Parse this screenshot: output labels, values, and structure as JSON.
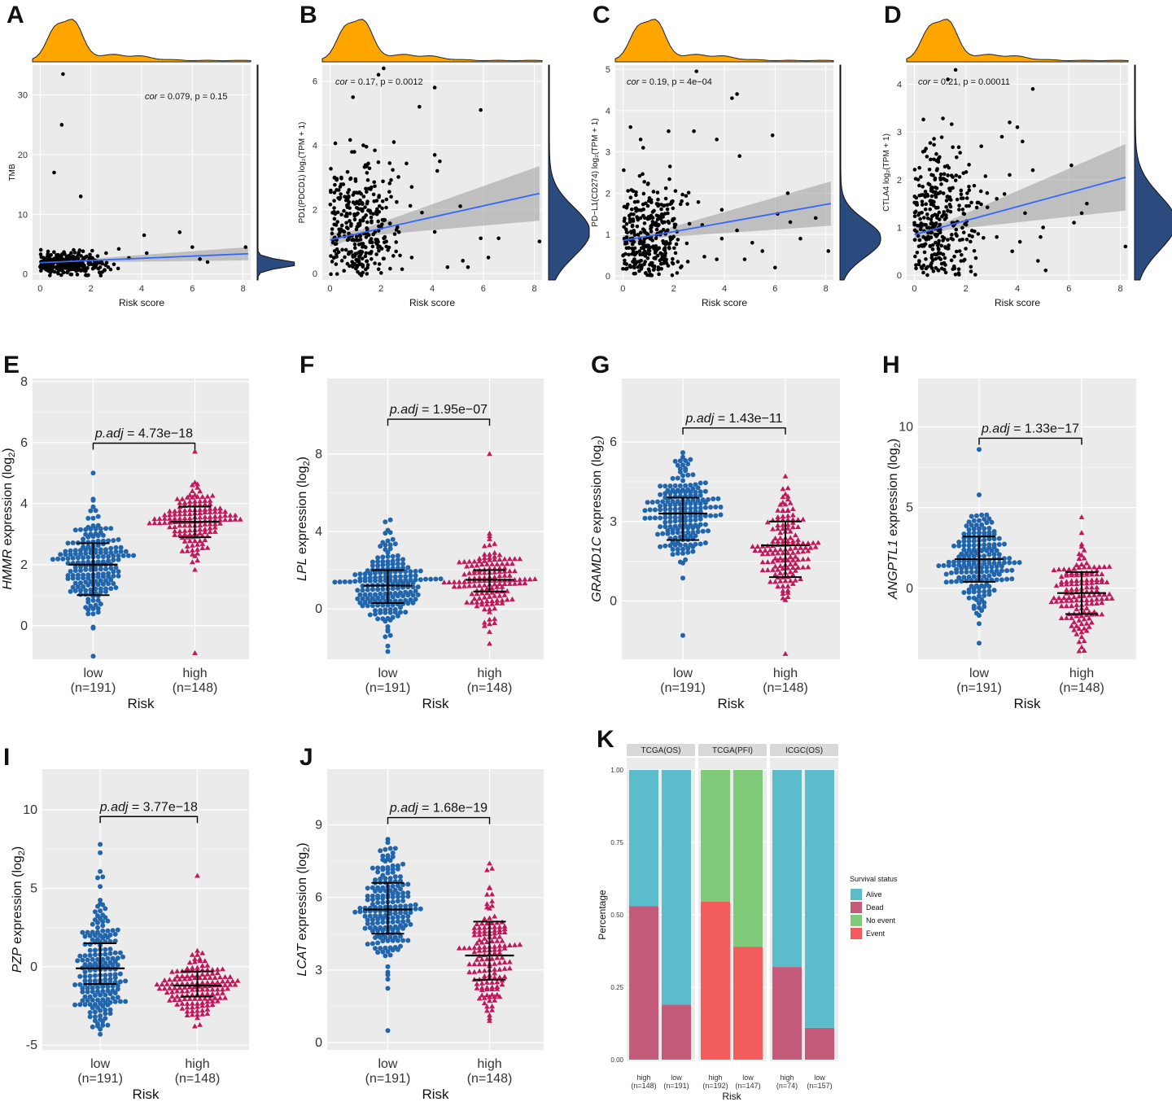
{
  "panel_labels": [
    "A",
    "B",
    "C",
    "D",
    "E",
    "F",
    "G",
    "H",
    "I",
    "J",
    "K"
  ],
  "colors": {
    "panel_bg": "#ebebeb",
    "grid": "#ffffff",
    "density_top": "#ffa500",
    "density_right": "#2b4a7e",
    "fit_line": "#3366ff",
    "ci_band": "#9a9a9a",
    "low_group": "#2166ac",
    "high_group": "#c2185b",
    "alive": "#5bbccc",
    "dead": "#c45b7a",
    "no_event": "#7fcb7a",
    "event": "#f25c5c",
    "strip_bg": "#d9d9d9"
  },
  "chart_data": [
    {
      "id": "A",
      "type": "scatter",
      "xlabel": "Risk score",
      "ylabel": "TMB",
      "annotation": {
        "cor_text": "cor",
        "rest": " = 0.079, p = 0.15"
      },
      "xlim": [
        -0.3,
        8.3
      ],
      "ylim": [
        -1,
        35
      ],
      "xticks": [
        0,
        2,
        4,
        6,
        8
      ],
      "yticks": [
        0,
        10,
        20,
        30
      ],
      "fit": {
        "y0": 1.9,
        "y1": 3.4
      },
      "outliers": [
        [
          0.9,
          33.5
        ],
        [
          0.85,
          25
        ],
        [
          0.55,
          17
        ],
        [
          1.6,
          13
        ],
        [
          4.1,
          6.5
        ],
        [
          5.5,
          7
        ],
        [
          3.1,
          4.2
        ],
        [
          4.2,
          3.5
        ],
        [
          6.0,
          4.5
        ],
        [
          6.3,
          2.5
        ],
        [
          6.6,
          2
        ],
        [
          8.1,
          4.5
        ],
        [
          2.6,
          3.5
        ],
        [
          3.5,
          2.7
        ]
      ],
      "main_cluster": {
        "n": 300,
        "x_mean": 1.1,
        "x_sd": 0.9,
        "y_mean": 1.7,
        "y_sd": 1.0
      }
    },
    {
      "id": "B",
      "type": "scatter",
      "xlabel": "Risk score",
      "ylabel": "PD1(PDCD1) log₂(TPM + 1)",
      "annotation": {
        "cor_text": "cor",
        "rest": " = 0.17, p = 0.0012"
      },
      "xlim": [
        -0.3,
        8.3
      ],
      "ylim": [
        -0.2,
        6.5
      ],
      "xticks": [
        0,
        2,
        4,
        6,
        8
      ],
      "yticks": [
        0,
        2,
        4,
        6
      ],
      "fit": {
        "y0": 1.05,
        "y1": 2.5
      },
      "outliers": [
        [
          2.1,
          6.4
        ],
        [
          1.9,
          6.2
        ],
        [
          4.1,
          5.8
        ],
        [
          0.9,
          5.5
        ],
        [
          5.9,
          5.1
        ],
        [
          3.5,
          5.2
        ],
        [
          2.5,
          4.1
        ],
        [
          4.1,
          3.7
        ],
        [
          4.3,
          3.5
        ],
        [
          4.2,
          3.2
        ],
        [
          3.2,
          2.7
        ],
        [
          5.1,
          2.1
        ],
        [
          3.6,
          1.9
        ],
        [
          4.1,
          1.3
        ],
        [
          5.9,
          1.1
        ],
        [
          8.2,
          1.0
        ],
        [
          6.6,
          1.1
        ],
        [
          6.2,
          0.5
        ],
        [
          5.2,
          0.4
        ],
        [
          5.4,
          0.2
        ],
        [
          4.6,
          0.2
        ],
        [
          3.2,
          0.5
        ]
      ],
      "main_cluster": {
        "n": 330,
        "x_mean": 1.1,
        "x_sd": 0.9,
        "y_mean": 1.3,
        "y_sd": 1.2
      }
    },
    {
      "id": "C",
      "type": "scatter",
      "xlabel": "Risk score",
      "ylabel": "PD−L1(CD274) log₂(TPM + 1)",
      "annotation": {
        "cor_text": "cor",
        "rest": " = 0.19, p = 4e−04"
      },
      "xlim": [
        -0.3,
        8.3
      ],
      "ylim": [
        -0.1,
        5.1
      ],
      "xticks": [
        0,
        2,
        4,
        6,
        8
      ],
      "yticks": [
        0,
        1,
        2,
        3,
        4,
        5
      ],
      "fit": {
        "y0": 0.85,
        "y1": 1.75
      },
      "outliers": [
        [
          2.9,
          4.95
        ],
        [
          4.5,
          4.4
        ],
        [
          4.3,
          4.3
        ],
        [
          0.3,
          3.6
        ],
        [
          1.8,
          3.5
        ],
        [
          2.8,
          3.5
        ],
        [
          0.7,
          3.3
        ],
        [
          5.9,
          3.4
        ],
        [
          3.7,
          3.3
        ],
        [
          0.8,
          3.1
        ],
        [
          4.6,
          2.9
        ],
        [
          6.5,
          2.0
        ],
        [
          3.9,
          1.6
        ],
        [
          6.1,
          1.5
        ],
        [
          7.6,
          1.4
        ],
        [
          6.6,
          1.3
        ],
        [
          4.5,
          1.1
        ],
        [
          5.1,
          0.8
        ],
        [
          7.0,
          0.9
        ],
        [
          5.5,
          0.6
        ],
        [
          4.8,
          0.4
        ],
        [
          3.7,
          0.4
        ],
        [
          6.0,
          0.2
        ],
        [
          8.1,
          0.6
        ],
        [
          3.9,
          0.9
        ]
      ],
      "main_cluster": {
        "n": 330,
        "x_mean": 1.0,
        "x_sd": 0.8,
        "y_mean": 0.9,
        "y_sd": 0.7
      }
    },
    {
      "id": "D",
      "type": "scatter",
      "xlabel": "Risk score",
      "ylabel": "CTLA4 log₂(TPM + 1)",
      "annotation": {
        "cor_text": "cor",
        "rest": " = 0.21, p = 0.00011"
      },
      "xlim": [
        -0.3,
        8.3
      ],
      "ylim": [
        -0.1,
        4.4
      ],
      "xticks": [
        0,
        2,
        4,
        6,
        8
      ],
      "yticks": [
        0,
        1,
        2,
        3,
        4
      ],
      "fit": {
        "y0": 0.85,
        "y1": 2.05
      },
      "outliers": [
        [
          1.6,
          4.3
        ],
        [
          1.3,
          4.1
        ],
        [
          4.6,
          3.9
        ],
        [
          3.7,
          3.2
        ],
        [
          4.0,
          3.1
        ],
        [
          3.4,
          2.9
        ],
        [
          4.2,
          2.8
        ],
        [
          2.6,
          2.7
        ],
        [
          6.1,
          2.3
        ],
        [
          3.7,
          2.1
        ],
        [
          4.6,
          2.2
        ],
        [
          3.2,
          1.6
        ],
        [
          3.5,
          1.7
        ],
        [
          4.3,
          1.3
        ],
        [
          5.0,
          1.0
        ],
        [
          6.7,
          1.5
        ],
        [
          6.5,
          1.3
        ],
        [
          6.2,
          1.1
        ],
        [
          4.9,
          0.8
        ],
        [
          4.1,
          0.7
        ],
        [
          3.2,
          0.8
        ],
        [
          8.2,
          0.6
        ],
        [
          5.1,
          0.1
        ],
        [
          4.8,
          0.3
        ],
        [
          3.8,
          0.5
        ]
      ],
      "main_cluster": {
        "n": 330,
        "x_mean": 1.0,
        "x_sd": 0.8,
        "y_mean": 1.1,
        "y_sd": 0.9
      }
    },
    {
      "id": "E",
      "type": "beeswarm",
      "gene": "HMMR",
      "ylabel_suffix": " expression (log",
      "ylabel_sub": "2",
      "ylabel_close": ")",
      "xlabel": "Risk",
      "groups": [
        {
          "name": "low",
          "n_label": "(n=191)",
          "n": 191,
          "mean": 2.0,
          "sd": 0.85,
          "min": -1.0,
          "max": 5.0,
          "mid": 2.0,
          "lo": 1.0,
          "hi": 2.7
        },
        {
          "name": "high",
          "n_label": "(n=148)",
          "n": 148,
          "mean": 3.4,
          "sd": 0.6,
          "min": -0.9,
          "max": 5.7,
          "mid": 3.4,
          "lo": 2.9,
          "hi": 3.9
        }
      ],
      "padj_label": "p.adj",
      "padj_value": "4.73e−18",
      "padj_y": 6.3,
      "ylim": [
        -1.1,
        8.1
      ],
      "yticks": [
        0,
        2,
        4,
        6,
        8
      ]
    },
    {
      "id": "F",
      "type": "beeswarm",
      "gene": "LPL",
      "ylabel_suffix": " expression (log",
      "ylabel_sub": "2",
      "ylabel_close": ")",
      "xlabel": "Risk",
      "groups": [
        {
          "name": "low",
          "n_label": "(n=191)",
          "n": 191,
          "mean": 1.2,
          "sd": 1.1,
          "min": -2.2,
          "max": 4.6,
          "mid": 1.2,
          "lo": 0.3,
          "hi": 2.0
        },
        {
          "name": "high",
          "n_label": "(n=148)",
          "n": 148,
          "mean": 1.5,
          "sd": 1.0,
          "min": -1.8,
          "max": 8.0,
          "mid": 1.5,
          "lo": 0.9,
          "hi": 2.0
        }
      ],
      "padj_label": "p.adj",
      "padj_value": "1.95e−07",
      "padj_y": 10.3,
      "ylim": [
        -2.6,
        11.9
      ],
      "yticks": [
        0,
        4,
        8
      ]
    },
    {
      "id": "G",
      "type": "beeswarm",
      "gene": "GRAMD1C",
      "ylabel_suffix": " expression (log",
      "ylabel_sub": "2",
      "ylabel_close": ")",
      "xlabel": "Risk",
      "groups": [
        {
          "name": "low",
          "n_label": "(n=191)",
          "n": 191,
          "mean": 3.3,
          "sd": 0.9,
          "min": -1.3,
          "max": 5.6,
          "mid": 3.3,
          "lo": 2.3,
          "hi": 3.9
        },
        {
          "name": "high",
          "n_label": "(n=148)",
          "n": 148,
          "mean": 2.1,
          "sd": 1.0,
          "min": -2.0,
          "max": 4.7,
          "mid": 2.1,
          "lo": 0.9,
          "hi": 3.0
        }
      ],
      "padj_label": "p.adj",
      "padj_value": "1.43e−11",
      "padj_y": 6.9,
      "ylim": [
        -2.2,
        8.4
      ],
      "yticks": [
        0,
        3,
        6
      ]
    },
    {
      "id": "H",
      "type": "beeswarm",
      "gene": "ANGPTL1",
      "ylabel_suffix": " expression (log",
      "ylabel_sub": "2",
      "ylabel_close": ")",
      "xlabel": "Risk",
      "groups": [
        {
          "name": "low",
          "n_label": "(n=191)",
          "n": 191,
          "mean": 1.8,
          "sd": 1.5,
          "min": -3.4,
          "max": 8.6,
          "mid": 1.8,
          "lo": 0.4,
          "hi": 3.2
        },
        {
          "name": "high",
          "n_label": "(n=148)",
          "n": 148,
          "mean": -0.3,
          "sd": 1.4,
          "min": -3.9,
          "max": 4.4,
          "mid": -0.3,
          "lo": -1.6,
          "hi": 1.0
        }
      ],
      "padj_label": "p.adj",
      "padj_value": "1.33e−17",
      "padj_y": 9.9,
      "ylim": [
        -4.4,
        13.0
      ],
      "yticks": [
        0,
        5,
        10
      ]
    },
    {
      "id": "I",
      "type": "beeswarm",
      "gene": "PZP",
      "ylabel_suffix": " expression (log",
      "ylabel_sub": "2",
      "ylabel_close": ")",
      "xlabel": "Risk",
      "groups": [
        {
          "name": "low",
          "n_label": "(n=191)",
          "n": 191,
          "mean": -0.1,
          "sd": 2.2,
          "min": -4.3,
          "max": 7.8,
          "mid": -0.1,
          "lo": -1.1,
          "hi": 1.5
        },
        {
          "name": "high",
          "n_label": "(n=148)",
          "n": 148,
          "mean": -1.2,
          "sd": 1.0,
          "min": -3.8,
          "max": 5.8,
          "mid": -1.2,
          "lo": -1.9,
          "hi": -0.3
        }
      ],
      "padj_label": "p.adj",
      "padj_value": "3.77e−18",
      "padj_y": 10.2,
      "ylim": [
        -5.3,
        12.6
      ],
      "yticks": [
        -5,
        0,
        5,
        10
      ]
    },
    {
      "id": "J",
      "type": "beeswarm",
      "gene": "LCAT",
      "ylabel_suffix": " expression (log",
      "ylabel_sub": "2",
      "ylabel_close": ")",
      "xlabel": "Risk",
      "groups": [
        {
          "name": "low",
          "n_label": "(n=191)",
          "n": 191,
          "mean": 5.5,
          "sd": 1.1,
          "min": 0.5,
          "max": 8.4,
          "mid": 5.5,
          "lo": 4.5,
          "hi": 6.6
        },
        {
          "name": "high",
          "n_label": "(n=148)",
          "n": 148,
          "mean": 3.6,
          "sd": 1.3,
          "min": 0.9,
          "max": 7.4,
          "mid": 3.6,
          "lo": 2.6,
          "hi": 5.0
        }
      ],
      "padj_label": "p.adj",
      "padj_value": "1.68e−19",
      "padj_y": 9.7,
      "ylim": [
        -0.3,
        11.3
      ],
      "yticks": [
        0,
        3,
        6,
        9
      ]
    },
    {
      "id": "K",
      "type": "bar",
      "stacked": true,
      "xlabel": "Risk",
      "ylabel": "Percentage",
      "ylim": [
        0,
        1.0
      ],
      "yticks": [
        "0.00",
        "0.25",
        "0.50",
        "0.75",
        "1.00"
      ],
      "legend": {
        "title": "Survival status",
        "position": "right",
        "items": [
          {
            "label": "Alive",
            "color": "#5bbccc"
          },
          {
            "label": "Dead",
            "color": "#c45b7a"
          },
          {
            "label": "No event",
            "color": "#7fcb7a"
          },
          {
            "label": "Event",
            "color": "#f25c5c"
          }
        ]
      },
      "facets": [
        {
          "title": "TCGA(OS)",
          "bars": [
            {
              "name": "high",
              "n_label": "(n=148)",
              "segments": [
                {
                  "status": "Dead",
                  "value": 0.53
                },
                {
                  "status": "Alive",
                  "value": 0.47
                }
              ]
            },
            {
              "name": "low",
              "n_label": "(n=191)",
              "segments": [
                {
                  "status": "Dead",
                  "value": 0.19
                },
                {
                  "status": "Alive",
                  "value": 0.81
                }
              ]
            }
          ]
        },
        {
          "title": "TCGA(PFI)",
          "bars": [
            {
              "name": "high",
              "n_label": "(n=192)",
              "segments": [
                {
                  "status": "Event",
                  "value": 0.545
                },
                {
                  "status": "No event",
                  "value": 0.455
                }
              ]
            },
            {
              "name": "low",
              "n_label": "(n=147)",
              "segments": [
                {
                  "status": "Event",
                  "value": 0.39
                },
                {
                  "status": "No event",
                  "value": 0.61
                }
              ]
            }
          ]
        },
        {
          "title": "ICGC(OS)",
          "bars": [
            {
              "name": "high",
              "n_label": "(n=74)",
              "segments": [
                {
                  "status": "Dead",
                  "value": 0.32
                },
                {
                  "status": "Alive",
                  "value": 0.68
                }
              ]
            },
            {
              "name": "low",
              "n_label": "(n=157)",
              "segments": [
                {
                  "status": "Dead",
                  "value": 0.11
                },
                {
                  "status": "Alive",
                  "value": 0.89
                }
              ]
            }
          ]
        }
      ]
    }
  ]
}
